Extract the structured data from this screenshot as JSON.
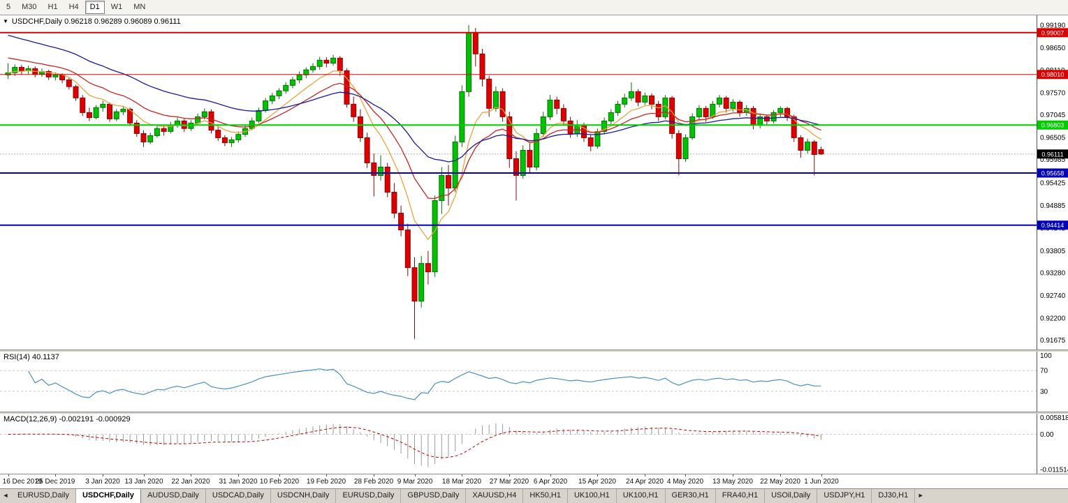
{
  "toolbar": {
    "timeframes": [
      {
        "label": "5",
        "selected": false
      },
      {
        "label": "M30",
        "selected": false
      },
      {
        "label": "H1",
        "selected": false
      },
      {
        "label": "H4",
        "selected": false
      },
      {
        "label": "D1",
        "selected": true
      },
      {
        "label": "W1",
        "selected": false
      },
      {
        "label": "MN",
        "selected": false
      }
    ]
  },
  "chart": {
    "dropdown_icon": "▼",
    "title": "USDCHF,Daily 0.96218 0.96289 0.96089 0.96111",
    "symbol": "USDCHF",
    "timeframe": "Daily",
    "ohlc": {
      "open": "0.96218",
      "high": "0.96289",
      "low": "0.96089",
      "close": "0.96111"
    }
  },
  "chart_data": {
    "type": "candlestick",
    "title": "USDCHF Daily",
    "price_min": 0.9158,
    "price_max": 0.9932,
    "current_price": 0.96111,
    "colors": {
      "up": "#00C200",
      "up_stroke": "#067306",
      "down": "#DE0000",
      "down_stroke": "#8f0404",
      "ma_fast": "#E8A33D",
      "ma_mid": "#CC2222",
      "ma_slow": "#1a1a9c",
      "line_red": "#dd0000",
      "line_green": "#00cc00",
      "line_blue": "#0000bb",
      "rsi_line": "#4a90c4",
      "macd_hist": "#9a9a9a",
      "macd_signal": "#cc0000"
    },
    "price_axis_labels": [
      0.9919,
      0.9865,
      0.9811,
      0.9757,
      0.97045,
      0.96505,
      0.95985,
      0.95425,
      0.94885,
      0.94345,
      0.93805,
      0.9328,
      0.9274,
      0.922,
      0.91675
    ],
    "hlines": [
      {
        "value": 0.99007,
        "color": "#dd0000",
        "width": 2
      },
      {
        "value": 0.9801,
        "color": "#dd0000",
        "width": 1
      },
      {
        "value": 0.96803,
        "color": "#00cc00",
        "width": 2
      },
      {
        "value": 0.95658,
        "color": "#0000bb",
        "width": 2
      },
      {
        "value": 0.94414,
        "color": "#0000bb",
        "width": 2
      }
    ],
    "ma": [
      {
        "name": "ma-fast",
        "period": 8,
        "seed": null,
        "color": "#E8A33D"
      },
      {
        "name": "ma-mid",
        "period": 16,
        "seed": 0.9845,
        "color": "#CC2222"
      },
      {
        "name": "ma-slow",
        "period": 34,
        "seed": 0.99,
        "color": "#1a1a9c"
      }
    ],
    "candles": [
      [
        0.98,
        0.9828,
        0.979,
        0.9805
      ],
      [
        0.9805,
        0.9825,
        0.9797,
        0.9818
      ],
      [
        0.9818,
        0.9824,
        0.98,
        0.981
      ],
      [
        0.981,
        0.9822,
        0.9802,
        0.9815
      ],
      [
        0.9815,
        0.982,
        0.9794,
        0.9802
      ],
      [
        0.9802,
        0.9815,
        0.9795,
        0.9808
      ],
      [
        0.9808,
        0.9812,
        0.9788,
        0.9795
      ],
      [
        0.9795,
        0.9806,
        0.9787,
        0.98
      ],
      [
        0.98,
        0.9804,
        0.978,
        0.9788
      ],
      [
        0.9788,
        0.9794,
        0.9765,
        0.9772
      ],
      [
        0.9772,
        0.9776,
        0.9738,
        0.9745
      ],
      [
        0.9745,
        0.9752,
        0.9702,
        0.971
      ],
      [
        0.971,
        0.9722,
        0.969,
        0.9698
      ],
      [
        0.9698,
        0.9728,
        0.9694,
        0.9722
      ],
      [
        0.9722,
        0.9738,
        0.9712,
        0.973
      ],
      [
        0.973,
        0.9734,
        0.9688,
        0.9695
      ],
      [
        0.9695,
        0.9718,
        0.969,
        0.9712
      ],
      [
        0.9712,
        0.9724,
        0.9704,
        0.9718
      ],
      [
        0.9718,
        0.9722,
        0.9678,
        0.9685
      ],
      [
        0.9685,
        0.9692,
        0.9652,
        0.966
      ],
      [
        0.966,
        0.9668,
        0.9628,
        0.964
      ],
      [
        0.964,
        0.9662,
        0.9635,
        0.9655
      ],
      [
        0.9655,
        0.9678,
        0.965,
        0.9672
      ],
      [
        0.9672,
        0.968,
        0.9655,
        0.9665
      ],
      [
        0.9665,
        0.9688,
        0.966,
        0.968
      ],
      [
        0.968,
        0.9698,
        0.9674,
        0.969
      ],
      [
        0.969,
        0.9695,
        0.9664,
        0.9672
      ],
      [
        0.9672,
        0.9692,
        0.9666,
        0.9685
      ],
      [
        0.9685,
        0.9708,
        0.968,
        0.97
      ],
      [
        0.97,
        0.972,
        0.9694,
        0.9712
      ],
      [
        0.9712,
        0.9718,
        0.966,
        0.9668
      ],
      [
        0.9668,
        0.9676,
        0.9642,
        0.965
      ],
      [
        0.965,
        0.9656,
        0.963,
        0.9638
      ],
      [
        0.9638,
        0.9652,
        0.9628,
        0.9645
      ],
      [
        0.9645,
        0.9665,
        0.9638,
        0.9658
      ],
      [
        0.9658,
        0.968,
        0.9652,
        0.9672
      ],
      [
        0.9672,
        0.9698,
        0.9668,
        0.969
      ],
      [
        0.969,
        0.9722,
        0.9685,
        0.9715
      ],
      [
        0.9715,
        0.9745,
        0.971,
        0.9738
      ],
      [
        0.9738,
        0.9757,
        0.973,
        0.975
      ],
      [
        0.975,
        0.9768,
        0.9742,
        0.9762
      ],
      [
        0.9762,
        0.9782,
        0.9755,
        0.9775
      ],
      [
        0.9775,
        0.9795,
        0.9768,
        0.9788
      ],
      [
        0.9788,
        0.9808,
        0.978,
        0.98
      ],
      [
        0.98,
        0.9818,
        0.9792,
        0.9812
      ],
      [
        0.9812,
        0.9828,
        0.9805,
        0.982
      ],
      [
        0.982,
        0.9843,
        0.9812,
        0.9835
      ],
      [
        0.9835,
        0.9842,
        0.9818,
        0.9828
      ],
      [
        0.9828,
        0.9848,
        0.9822,
        0.984
      ],
      [
        0.984,
        0.9845,
        0.9798,
        0.981
      ],
      [
        0.981,
        0.9815,
        0.9722,
        0.973
      ],
      [
        0.973,
        0.9748,
        0.9688,
        0.97
      ],
      [
        0.97,
        0.9718,
        0.964,
        0.965
      ],
      [
        0.965,
        0.9662,
        0.9578,
        0.959
      ],
      [
        0.959,
        0.9612,
        0.951,
        0.956
      ],
      [
        0.956,
        0.9608,
        0.9548,
        0.958
      ],
      [
        0.958,
        0.959,
        0.9508,
        0.952
      ],
      [
        0.952,
        0.9542,
        0.9458,
        0.947
      ],
      [
        0.947,
        0.9488,
        0.9415,
        0.943
      ],
      [
        0.943,
        0.9445,
        0.932,
        0.934
      ],
      [
        0.934,
        0.9365,
        0.917,
        0.926
      ],
      [
        0.926,
        0.9368,
        0.9245,
        0.935
      ],
      [
        0.935,
        0.938,
        0.93,
        0.933
      ],
      [
        0.933,
        0.9512,
        0.9318,
        0.95
      ],
      [
        0.95,
        0.958,
        0.9468,
        0.956
      ],
      [
        0.956,
        0.9585,
        0.9488,
        0.953
      ],
      [
        0.953,
        0.9655,
        0.952,
        0.964
      ],
      [
        0.964,
        0.9775,
        0.9628,
        0.976
      ],
      [
        0.976,
        0.9919,
        0.9748,
        0.99
      ],
      [
        0.99,
        0.9912,
        0.982,
        0.985
      ],
      [
        0.985,
        0.9862,
        0.9772,
        0.979
      ],
      [
        0.979,
        0.9798,
        0.97,
        0.972
      ],
      [
        0.972,
        0.9772,
        0.9712,
        0.976
      ],
      [
        0.976,
        0.9768,
        0.9688,
        0.97
      ],
      [
        0.97,
        0.9712,
        0.9578,
        0.96
      ],
      [
        0.96,
        0.9618,
        0.95,
        0.956
      ],
      [
        0.956,
        0.9632,
        0.9552,
        0.962
      ],
      [
        0.962,
        0.9638,
        0.9565,
        0.958
      ],
      [
        0.958,
        0.9672,
        0.9572,
        0.966
      ],
      [
        0.966,
        0.9712,
        0.9652,
        0.97
      ],
      [
        0.97,
        0.9752,
        0.9692,
        0.974
      ],
      [
        0.974,
        0.9748,
        0.9706,
        0.972
      ],
      [
        0.972,
        0.973,
        0.968,
        0.969
      ],
      [
        0.969,
        0.97,
        0.965,
        0.966
      ],
      [
        0.966,
        0.9692,
        0.9652,
        0.968
      ],
      [
        0.968,
        0.9686,
        0.964,
        0.965
      ],
      [
        0.965,
        0.9658,
        0.9618,
        0.963
      ],
      [
        0.963,
        0.9672,
        0.9624,
        0.9665
      ],
      [
        0.9665,
        0.9698,
        0.9658,
        0.969
      ],
      [
        0.969,
        0.9718,
        0.9682,
        0.971
      ],
      [
        0.971,
        0.9738,
        0.9702,
        0.973
      ],
      [
        0.973,
        0.9755,
        0.9722,
        0.9745
      ],
      [
        0.9745,
        0.9782,
        0.9738,
        0.976
      ],
      [
        0.976,
        0.9766,
        0.9725,
        0.9735
      ],
      [
        0.9735,
        0.9758,
        0.9728,
        0.975
      ],
      [
        0.975,
        0.9756,
        0.9718,
        0.973
      ],
      [
        0.973,
        0.9738,
        0.969,
        0.97
      ],
      [
        0.97,
        0.9752,
        0.9694,
        0.9745
      ],
      [
        0.9745,
        0.975,
        0.9648,
        0.966
      ],
      [
        0.966,
        0.9668,
        0.956,
        0.96
      ],
      [
        0.96,
        0.9658,
        0.9592,
        0.965
      ],
      [
        0.965,
        0.9708,
        0.9645,
        0.97
      ],
      [
        0.97,
        0.9728,
        0.9692,
        0.972
      ],
      [
        0.972,
        0.9726,
        0.9688,
        0.97
      ],
      [
        0.97,
        0.9738,
        0.9695,
        0.973
      ],
      [
        0.973,
        0.9752,
        0.9722,
        0.9745
      ],
      [
        0.9745,
        0.975,
        0.971,
        0.972
      ],
      [
        0.972,
        0.9742,
        0.9712,
        0.9735
      ],
      [
        0.9735,
        0.974,
        0.97,
        0.971
      ],
      [
        0.971,
        0.9728,
        0.9702,
        0.972
      ],
      [
        0.972,
        0.9726,
        0.967,
        0.968
      ],
      [
        0.968,
        0.9706,
        0.9672,
        0.97
      ],
      [
        0.97,
        0.9705,
        0.968,
        0.969
      ],
      [
        0.969,
        0.9716,
        0.9684,
        0.971
      ],
      [
        0.971,
        0.9725,
        0.97,
        0.972
      ],
      [
        0.972,
        0.9724,
        0.969,
        0.97
      ],
      [
        0.97,
        0.9705,
        0.964,
        0.965
      ],
      [
        0.965,
        0.9656,
        0.9602,
        0.962
      ],
      [
        0.962,
        0.9648,
        0.9612,
        0.964
      ],
      [
        0.964,
        0.9645,
        0.956,
        0.961
      ],
      [
        0.96218,
        0.96289,
        0.96089,
        0.96111
      ]
    ],
    "date_labels": [
      {
        "label": "16 Dec 2019",
        "index": 0
      },
      {
        "label": "25 Dec 2019",
        "index": 7
      },
      {
        "label": "3 Jan 2020",
        "index": 14
      },
      {
        "label": "13 Jan 2020",
        "index": 20
      },
      {
        "label": "22 Jan 2020",
        "index": 27
      },
      {
        "label": "31 Jan 2020",
        "index": 34
      },
      {
        "label": "10 Feb 2020",
        "index": 40
      },
      {
        "label": "19 Feb 2020",
        "index": 47
      },
      {
        "label": "28 Feb 2020",
        "index": 54
      },
      {
        "label": "9 Mar 2020",
        "index": 60
      },
      {
        "label": "18 Mar 2020",
        "index": 67
      },
      {
        "label": "27 Mar 2020",
        "index": 74
      },
      {
        "label": "6 Apr 2020",
        "index": 80
      },
      {
        "label": "15 Apr 2020",
        "index": 87
      },
      {
        "label": "24 Apr 2020",
        "index": 94
      },
      {
        "label": "4 May 2020",
        "index": 100
      },
      {
        "label": "13 May 2020",
        "index": 107
      },
      {
        "label": "22 May 2020",
        "index": 114
      },
      {
        "label": "1 Jun 2020",
        "index": 120
      }
    ],
    "rsi": {
      "label": "RSI(14) 40.1137",
      "period": 14,
      "value": 40.1137,
      "levels": [
        100,
        70,
        30
      ],
      "dashed_levels": [
        70,
        30
      ]
    },
    "macd": {
      "label": "MACD(12,26,9) -0.002191 -0.000929",
      "fast": 12,
      "slow": 26,
      "signal": 9,
      "main_value": -0.002191,
      "signal_value": -0.000929,
      "max": 0.005818,
      "min": -0.011514,
      "axis_labels": [
        {
          "value": 0.005818,
          "text": "0.005818"
        },
        {
          "value": 0.0,
          "text": "0.00"
        },
        {
          "value": -0.011514,
          "text": "-0.011514"
        }
      ]
    }
  },
  "tabs": {
    "left_arrow": "◄",
    "right_arrow": "►",
    "items": [
      {
        "label": "EURUSD,Daily",
        "active": false
      },
      {
        "label": "USDCHF,Daily",
        "active": true
      },
      {
        "label": "AUDUSD,Daily",
        "active": false
      },
      {
        "label": "USDCAD,Daily",
        "active": false
      },
      {
        "label": "USDCNH,Daily",
        "active": false
      },
      {
        "label": "EURUSD,Daily",
        "active": false
      },
      {
        "label": "GBPUSD,Daily",
        "active": false
      },
      {
        "label": "XAUUSD,H4",
        "active": false
      },
      {
        "label": "HK50,H1",
        "active": false
      },
      {
        "label": "UK100,H1",
        "active": false
      },
      {
        "label": "UK100,H1",
        "active": false
      },
      {
        "label": "GER30,H1",
        "active": false
      },
      {
        "label": "FRA40,H1",
        "active": false
      },
      {
        "label": "USOil,Daily",
        "active": false
      },
      {
        "label": "USDJPY,H1",
        "active": false
      },
      {
        "label": "DJ30,H1",
        "active": false
      }
    ]
  }
}
